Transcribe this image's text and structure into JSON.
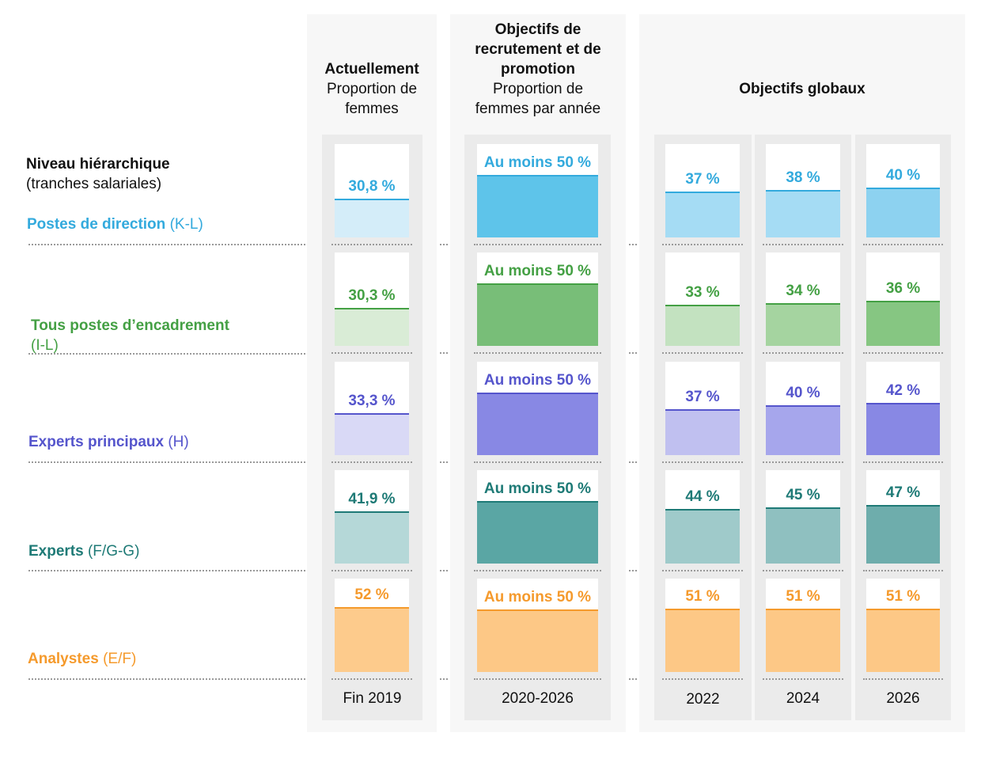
{
  "header": {
    "level_title": "Niveau hiérarchique",
    "level_sub": "(tranches salariales)",
    "g1_title": "Actuellement",
    "g1_sub1": "Proportion de",
    "g1_sub2": "femmes",
    "g2_title1": "Objectifs de",
    "g2_title2": "recrutement et de",
    "g2_title3": "promotion",
    "g2_sub1": "Proportion de",
    "g2_sub2": "femmes par année",
    "g3_title": "Objectifs globaux"
  },
  "rows": [
    {
      "name": "Postes de direction",
      "grade": "(K-L)",
      "color": "#33aadd"
    },
    {
      "name": "Tous postes d’encadrement",
      "grade": "(I-L)",
      "color": "#44a044"
    },
    {
      "name": "Experts principaux",
      "grade": "(H)",
      "color": "#5555cc"
    },
    {
      "name": "Experts",
      "grade": "(F/G-G)",
      "color": "#1e7a76"
    },
    {
      "name": "Analystes",
      "grade": "(E/F)",
      "color": "#f59a2c"
    }
  ],
  "columns": [
    {
      "year": "Fin 2019"
    },
    {
      "year": "2020-2026"
    },
    {
      "year": "2022"
    },
    {
      "year": "2024"
    },
    {
      "year": "2026"
    }
  ],
  "chart_data": {
    "type": "table",
    "rows": [
      "Postes de direction (K-L)",
      "Tous postes d’encadrement (I-L)",
      "Experts principaux (H)",
      "Experts (F/G-G)",
      "Analystes (E/F)"
    ],
    "columns": [
      "Fin 2019",
      "2020-2026",
      "2022",
      "2024",
      "2026"
    ],
    "values": [
      [
        30.8,
        50,
        37,
        38,
        40
      ],
      [
        30.3,
        50,
        33,
        34,
        36
      ],
      [
        33.3,
        50,
        37,
        40,
        42
      ],
      [
        41.9,
        50,
        44,
        45,
        47
      ],
      [
        52,
        50,
        51,
        51,
        51
      ]
    ],
    "labels": [
      [
        "30,8 %",
        "Au moins 50 %",
        "37 %",
        "38 %",
        "40 %"
      ],
      [
        "30,3 %",
        "Au moins 50 %",
        "33 %",
        "34 %",
        "36 %"
      ],
      [
        "33,3 %",
        "Au moins 50 %",
        "37 %",
        "40 %",
        "42 %"
      ],
      [
        "41,9 %",
        "Au moins 50 %",
        "44 %",
        "45 %",
        "47 %"
      ],
      [
        "52 %",
        "Au moins 50 %",
        "51 %",
        "51 %",
        "51 %"
      ]
    ],
    "colors": {
      "current": [
        "#d4edf9",
        "#d9ecd6",
        "#d9d9f6",
        "#b5d8d8",
        "#fdcb8c"
      ],
      "target": [
        "#5ec4ea",
        "#78be78",
        "#8888e4",
        "#5aa6a4",
        "#fdc886"
      ],
      "y2022": [
        "#a5dcf4",
        "#c3e2c0",
        "#c0c0f0",
        "#9fcaca",
        "#fdc886"
      ],
      "y2024": [
        "#a5dcf4",
        "#a5d4a0",
        "#a6a6ec",
        "#8fc0c0",
        "#fdc886"
      ],
      "y2026": [
        "#8dd2f0",
        "#86c682",
        "#8888e4",
        "#6eadac",
        "#fdc886"
      ]
    }
  }
}
